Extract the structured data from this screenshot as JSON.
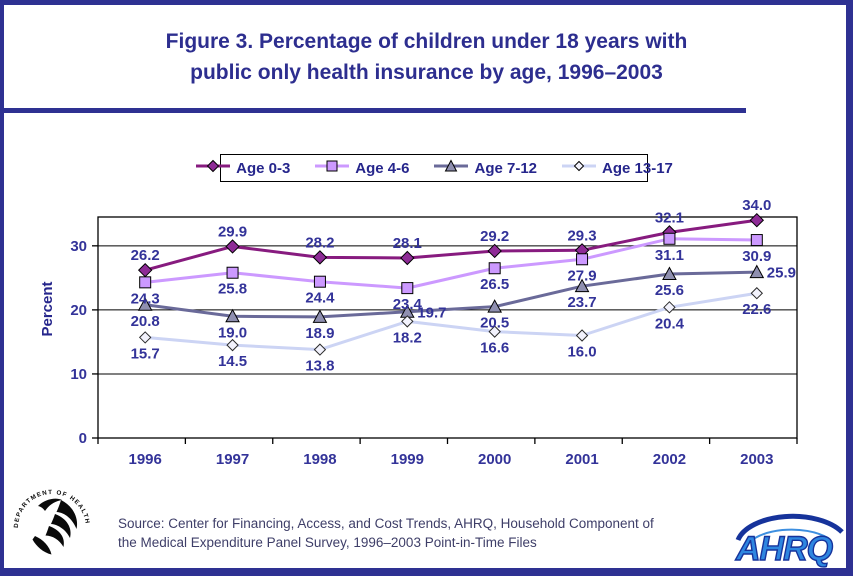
{
  "page": {
    "title_line1": "Figure 3. Percentage of children under 18 years with",
    "title_line2": "public only health insurance by age, 1996–2003",
    "source_line1": "Source: Center for Financing, Access, and Cost Trends, AHRQ, Household Component of",
    "source_line2": "the Medical Expenditure Panel Survey, 1996–2003 Point-in-Time Files"
  },
  "colors": {
    "frame_navy": "#2E3192",
    "title_navy": "#2D2E8F",
    "tick_label": "#333399",
    "data_label": "#333399",
    "gridline": "#000000"
  },
  "logos": {
    "hhs_seal_text": "DEPARTMENT OF HEALTH & HUMAN SERVICES • USA",
    "ahrq_text": "AHRQ"
  },
  "chart_data": {
    "type": "line",
    "title": "Figure 3. Percentage of children under 18 years with public only health insurance by age, 1996–2003",
    "xlabel": "",
    "ylabel": "Percent",
    "categories": [
      "1996",
      "1997",
      "1998",
      "1999",
      "2000",
      "2001",
      "2002",
      "2003"
    ],
    "yticks": [
      0,
      10,
      20,
      30
    ],
    "ylim": [
      0,
      34.5
    ],
    "grid": true,
    "legend_position": "top",
    "series": [
      {
        "name": "Age 0-3",
        "color": "#871B7F",
        "marker": "diamond",
        "marker_fill": "#8E2B96",
        "label_default": "above",
        "values": [
          26.2,
          29.9,
          28.2,
          28.1,
          29.2,
          29.3,
          32.1,
          34.0
        ]
      },
      {
        "name": "Age 4-6",
        "color": "#CC99FF",
        "marker": "square",
        "marker_fill": "#CC99FF",
        "label_default": "below",
        "values": [
          24.3,
          25.8,
          24.4,
          23.4,
          26.5,
          27.9,
          31.1,
          30.9
        ]
      },
      {
        "name": "Age 7-12",
        "color": "#6A6A99",
        "marker": "triangle",
        "marker_fill": "#8F8FB0",
        "label_default": "below",
        "label_overrides": {
          "3": "right",
          "7": "right"
        },
        "values": [
          20.8,
          19.0,
          18.9,
          19.7,
          20.5,
          23.7,
          25.6,
          25.9
        ]
      },
      {
        "name": "Age 13-17",
        "color": "#CCD4F4",
        "marker": "diamond-open",
        "marker_fill": "#F2F2FC",
        "label_default": "below",
        "values": [
          15.7,
          14.5,
          13.8,
          18.2,
          16.6,
          16.0,
          20.4,
          22.6
        ]
      }
    ]
  }
}
